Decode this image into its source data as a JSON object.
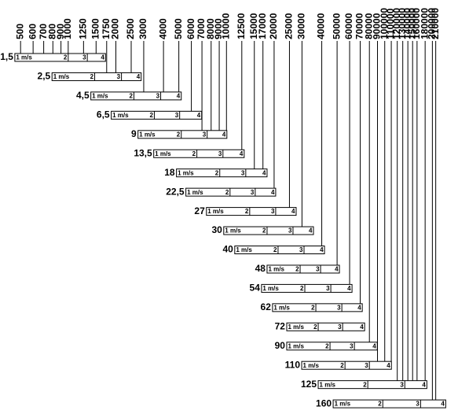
{
  "chart_data": {
    "type": "range-bar",
    "log_x": true,
    "xlim": [
      440,
      265000
    ],
    "xticks": [
      500,
      600,
      700,
      800,
      900,
      1000,
      1250,
      1500,
      1750,
      2000,
      2500,
      3000,
      4000,
      5000,
      6000,
      7000,
      8000,
      9000,
      10000,
      12500,
      15000,
      17000,
      20000,
      25000,
      30000,
      40000,
      50000,
      60000,
      70000,
      80000,
      90000,
      100000,
      110000,
      120000,
      130000,
      140000,
      150000,
      160000,
      180000,
      200000,
      210000
    ],
    "velocity_labels": [
      "1 m/s",
      "2",
      "3",
      "4"
    ],
    "color": "#000000",
    "series": [
      {
        "name": "1,5",
        "values": [
          460,
          1000,
          1320,
          1720
        ]
      },
      {
        "name": "2,5",
        "values": [
          790,
          1470,
          2170,
          2890
        ]
      },
      {
        "name": "4,5",
        "values": [
          1390,
          2600,
          3840,
          5180
        ]
      },
      {
        "name": "6,5",
        "values": [
          1870,
          3500,
          5060,
          6970
        ]
      },
      {
        "name": "9",
        "values": [
          2760,
          5180,
          7550,
          10060
        ]
      },
      {
        "name": "13,5",
        "values": [
          3470,
          6500,
          9500,
          12940
        ]
      },
      {
        "name": "18",
        "values": [
          4830,
          9070,
          13240,
          18050
        ]
      },
      {
        "name": "22,5",
        "values": [
          5540,
          10530,
          15190,
          20460
        ]
      },
      {
        "name": "27",
        "values": [
          7470,
          14020,
          20460,
          27560
        ]
      },
      {
        "name": "30",
        "values": [
          9610,
          18050,
          26320,
          35450
        ]
      },
      {
        "name": "40",
        "values": [
          11280,
          21180,
          30900,
          41630
        ]
      },
      {
        "name": "48",
        "values": [
          18050,
          29200,
          39320,
          51730
        ]
      },
      {
        "name": "54",
        "values": [
          16650,
          31260,
          45630,
          62130
        ]
      },
      {
        "name": "62",
        "values": [
          19540,
          36700,
          53570,
          72130
        ]
      },
      {
        "name": "72",
        "values": [
          24030,
          37980,
          54180,
          74640
        ]
      },
      {
        "name": "90",
        "values": [
          24030,
          45100,
          64300,
          89690
        ]
      },
      {
        "name": "110",
        "values": [
          29870,
          56090,
          79970,
          110200
        ]
      },
      {
        "name": "125",
        "values": [
          37980,
          78150,
          133900,
          184600
        ]
      },
      {
        "name": "160",
        "values": [
          47220,
          97200,
          168500,
          242900
        ]
      }
    ]
  }
}
